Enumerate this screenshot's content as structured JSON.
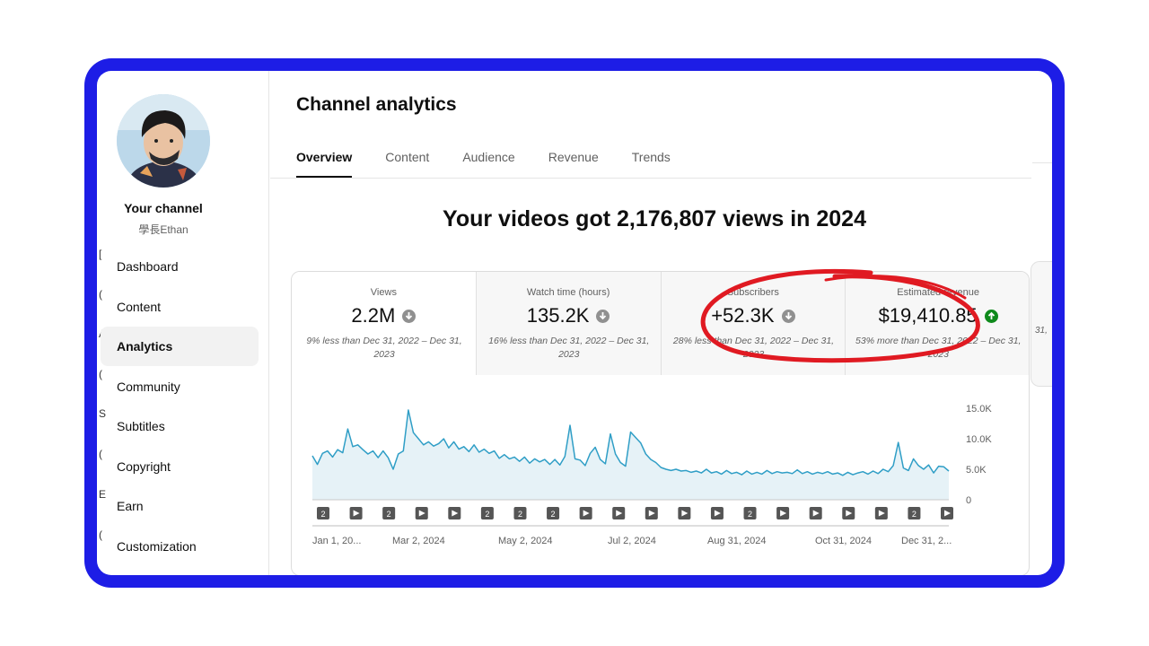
{
  "sidebar": {
    "channel_title": "Your channel",
    "channel_handle": "學長Ethan",
    "items": [
      {
        "label": "Dashboard"
      },
      {
        "label": "Content"
      },
      {
        "label": "Analytics"
      },
      {
        "label": "Community"
      },
      {
        "label": "Subtitles"
      },
      {
        "label": "Copyright"
      },
      {
        "label": "Earn"
      },
      {
        "label": "Customization"
      }
    ],
    "stubs": [
      "[",
      "(",
      "A",
      "(",
      "S",
      "(",
      "E",
      "("
    ]
  },
  "page": {
    "title": "Channel analytics",
    "tabs": [
      "Overview",
      "Content",
      "Audience",
      "Revenue",
      "Trends"
    ],
    "active_tab": "Overview",
    "headline": "Your videos got 2,176,807 views in 2024"
  },
  "metrics": [
    {
      "label": "Views",
      "value": "2.2M",
      "trend": "down",
      "compare": "9% less than Dec 31, 2022 – Dec 31, 2023"
    },
    {
      "label": "Watch time (hours)",
      "value": "135.2K",
      "trend": "down",
      "compare": "16% less than Dec 31, 2022 – Dec 31, 2023"
    },
    {
      "label": "Subscribers",
      "value": "+52.3K",
      "trend": "down",
      "compare": "28% less than Dec 31, 2022 – Dec 31, 2023"
    },
    {
      "label": "Estimated revenue",
      "value": "$19,410.85",
      "trend": "up",
      "compare": "53% more than Dec 31, 2022 – Dec 31, 2023"
    }
  ],
  "side_stub": "31,",
  "colors": {
    "frame": "#1d1de6",
    "line": "#2f9ec6",
    "fill": "#e6f2f7",
    "annotation": "#e01a22",
    "up": "#0f8a1c"
  },
  "chart_data": {
    "type": "area",
    "x_tick_labels": [
      "Jan 1, 20...",
      "Mar 2, 2024",
      "May 2, 2024",
      "Jul 2, 2024",
      "Aug 31, 2024",
      "Oct 31, 2024",
      "Dec 31, 2..."
    ],
    "y_tick_labels": [
      "15.0K",
      "10.0K",
      "5.0K",
      "0"
    ],
    "ylim": [
      0,
      15000
    ],
    "series": [
      {
        "values": [
          7200,
          5800,
          7600,
          8000,
          7000,
          8200,
          7700,
          11600,
          8700,
          9000,
          8200,
          7500,
          8000,
          6900,
          8000,
          6900,
          5000,
          7500,
          8000,
          14700,
          11000,
          10000,
          9000,
          9500,
          8800,
          9200,
          10000,
          8500,
          9500,
          8300,
          8700,
          7900,
          9000,
          7800,
          8300,
          7600,
          8000,
          6800,
          7400,
          6700,
          7000,
          6300,
          7000,
          6000,
          6700,
          6200,
          6600,
          5800,
          6600,
          5700,
          7100,
          12200,
          6700,
          6500,
          5600,
          7600,
          8600,
          6600,
          5900,
          10800,
          7500,
          6100,
          5500,
          11100,
          10200,
          9300,
          7500,
          6600,
          6100,
          5300,
          5000,
          4800,
          5000,
          4700,
          4800,
          4500,
          4700,
          4400,
          5000,
          4400,
          4600,
          4200,
          4800,
          4300,
          4500,
          4100,
          4700,
          4200,
          4500,
          4200,
          4800,
          4300,
          4600,
          4400,
          4500,
          4300,
          4900,
          4300,
          4600,
          4200,
          4500,
          4300,
          4600,
          4200,
          4400,
          4000,
          4500,
          4100,
          4400,
          4600,
          4200,
          4700,
          4300,
          5000,
          4600,
          5600,
          9400,
          5200,
          4800,
          6700,
          5600,
          5000,
          5700,
          4400,
          5500,
          5400,
          4700
        ]
      }
    ],
    "markers": [
      "2",
      "▶",
      "2",
      "▶",
      "▶",
      "2",
      "2",
      "2",
      "▶",
      "▶",
      "▶",
      "▶",
      "▶",
      "2",
      "▶",
      "▶",
      "▶",
      "▶",
      "2",
      "▶"
    ],
    "grid": false
  }
}
